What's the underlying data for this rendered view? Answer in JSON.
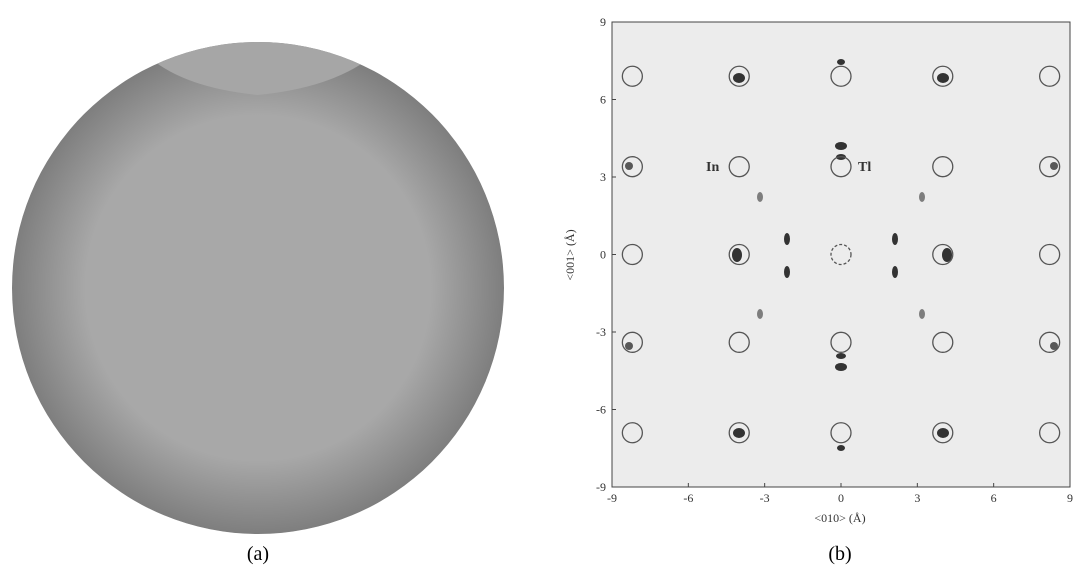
{
  "panels": [
    {
      "label": "(a)"
    },
    {
      "label": "(b)",
      "plot": {
        "xlabel": "<010> (Å)",
        "ylabel": "<001> (Å)",
        "xlim": [
          -9,
          9
        ],
        "ylim": [
          -9,
          9
        ],
        "xticks": [
          -9,
          -6,
          -3,
          0,
          3,
          6,
          9
        ],
        "yticks": [
          -9,
          -6,
          -3,
          0,
          3,
          6,
          9
        ],
        "annotations": [
          "In",
          "Tl"
        ],
        "atoms": {
          "x": [
            -8.2,
            -4,
            0,
            4,
            8.2
          ],
          "y": [
            6.9,
            3.4,
            0,
            -3.4,
            -6.9
          ]
        }
      }
    }
  ]
}
